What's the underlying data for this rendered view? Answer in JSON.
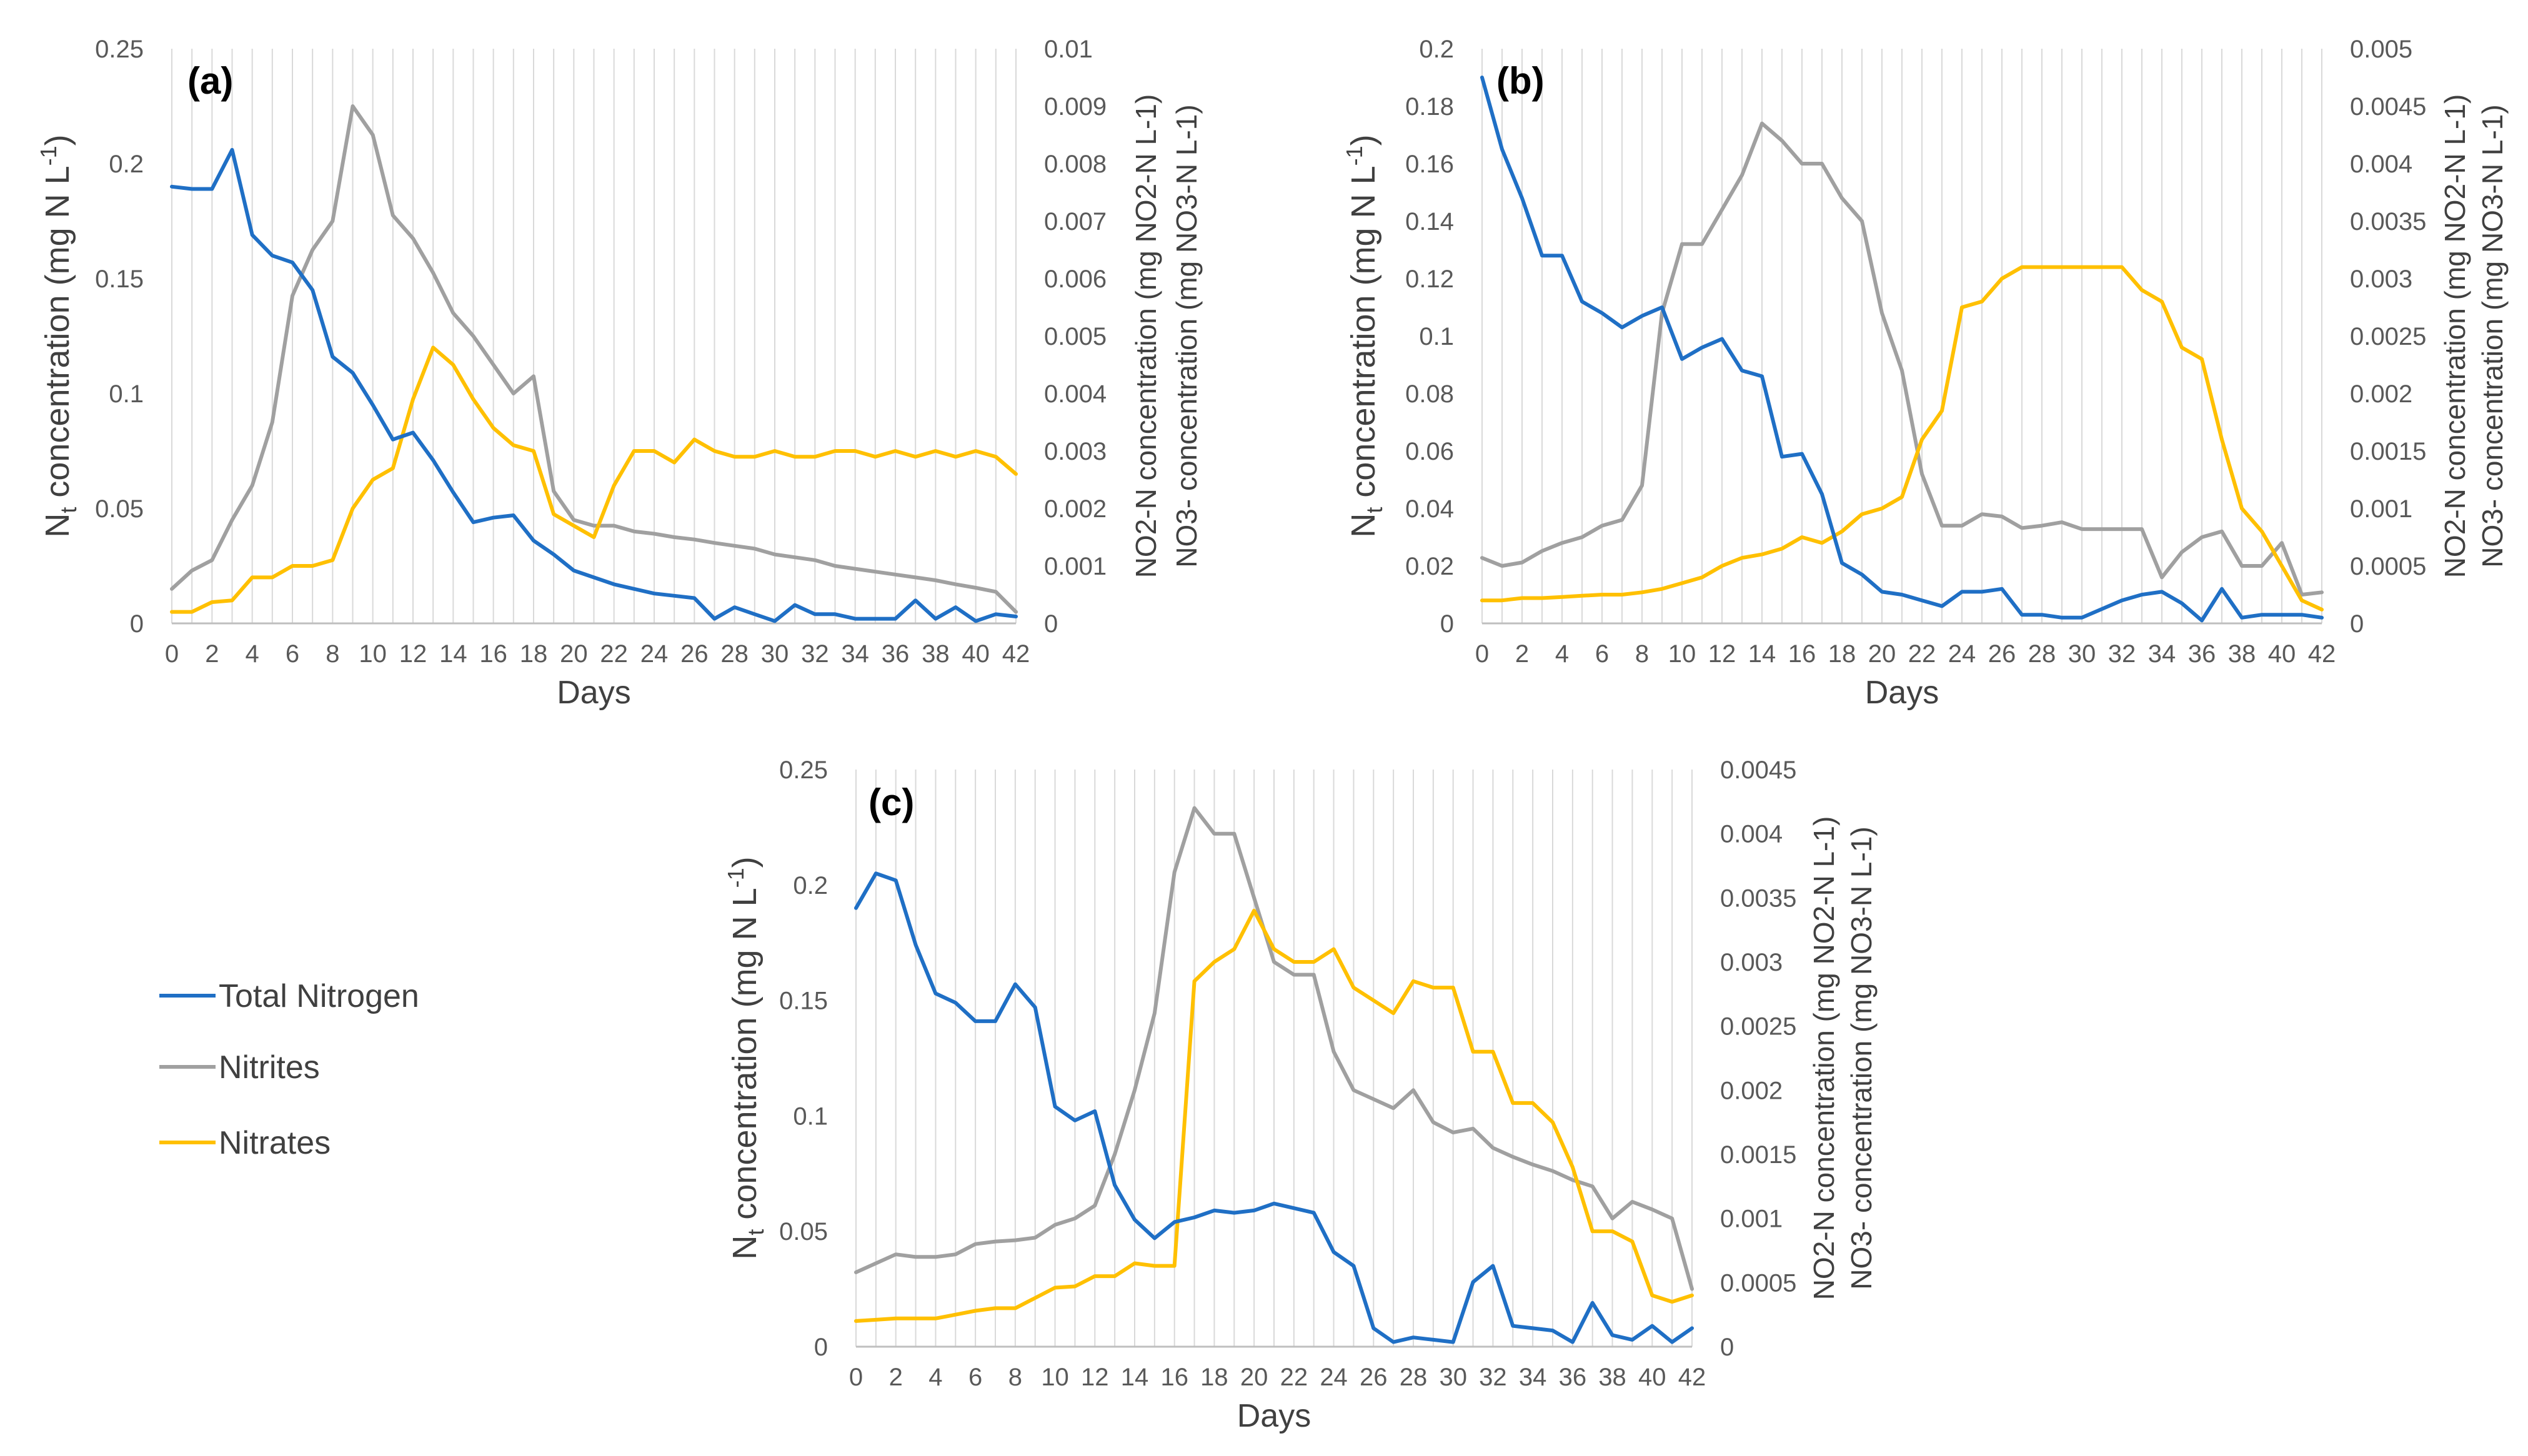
{
  "colors": {
    "total_nitrogen": "#1F6FC5",
    "nitrites": "#A0A0A0",
    "nitrates": "#FFC000",
    "grid": "#D9D9D9",
    "axis": "#BFBFBF"
  },
  "legend": {
    "items": [
      {
        "key": "total_nitrogen",
        "label": "Total Nitrogen"
      },
      {
        "key": "nitrites",
        "label": "Nitrites"
      },
      {
        "key": "nitrates",
        "label": "Nitrates"
      }
    ]
  },
  "chart_data": [
    {
      "panel": "(a)",
      "type": "line",
      "xlabel": "Days",
      "ylabel_left": "N",
      "ylabel_left_sub": "t",
      "ylabel_left_rest": " concentration (mg N L",
      "ylabel_left_sup": "-1",
      "ylabel_left_close": ")",
      "ylabel_right_1": "NO2-N concentration (mg NO2-N L-1)",
      "ylabel_right_2": "NO3- concentration (mg NO3-N L-1)",
      "x": [
        0,
        1,
        2,
        3,
        4,
        5,
        6,
        7,
        8,
        9,
        10,
        11,
        12,
        13,
        14,
        15,
        16,
        17,
        18,
        19,
        20,
        21,
        22,
        23,
        24,
        25,
        26,
        27,
        28,
        29,
        30,
        31,
        32,
        33,
        34,
        35,
        36,
        37,
        38,
        39,
        40,
        41,
        42
      ],
      "xticks": [
        "0",
        "2",
        "4",
        "6",
        "8",
        "10",
        "12",
        "14",
        "16",
        "18",
        "20",
        "22",
        "24",
        "26",
        "28",
        "30",
        "32",
        "34",
        "36",
        "38",
        "40",
        "42"
      ],
      "ylim_left": [
        0,
        0.25
      ],
      "yticks_left": [
        "0",
        "0.05",
        "0.1",
        "0.15",
        "0.2",
        "0.25"
      ],
      "ylim_right": [
        0,
        0.01
      ],
      "yticks_right": [
        "0",
        "0.001",
        "0.002",
        "0.003",
        "0.004",
        "0.005",
        "0.006",
        "0.007",
        "0.008",
        "0.009",
        "0.01"
      ],
      "series": [
        {
          "name": "Total Nitrogen",
          "key": "total_nitrogen",
          "axis": "left",
          "values": [
            0.19,
            0.189,
            0.189,
            0.206,
            0.169,
            0.16,
            0.157,
            0.145,
            0.116,
            0.109,
            0.095,
            0.08,
            0.083,
            0.071,
            0.057,
            0.044,
            0.046,
            0.047,
            0.036,
            0.03,
            0.023,
            0.02,
            0.017,
            0.015,
            0.013,
            0.012,
            0.011,
            0.002,
            0.007,
            0.004,
            0.001,
            0.008,
            0.004,
            0.004,
            0.002,
            0.002,
            0.002,
            0.01,
            0.002,
            0.007,
            0.001,
            0.004,
            0.003
          ]
        },
        {
          "name": "Nitrites",
          "key": "nitrites",
          "axis": "right",
          "values": [
            0.0006,
            0.00092,
            0.0011,
            0.0018,
            0.0024,
            0.0035,
            0.0057,
            0.0065,
            0.007,
            0.009,
            0.0085,
            0.0071,
            0.0067,
            0.0061,
            0.0054,
            0.005,
            0.0045,
            0.004,
            0.0043,
            0.0023,
            0.0018,
            0.0017,
            0.0017,
            0.0016,
            0.00156,
            0.0015,
            0.00146,
            0.0014,
            0.00135,
            0.0013,
            0.0012,
            0.00115,
            0.0011,
            0.001,
            0.00095,
            0.0009,
            0.00085,
            0.0008,
            0.00075,
            0.00068,
            0.00062,
            0.00055,
            0.0002
          ]
        },
        {
          "name": "Nitrates",
          "key": "nitrates",
          "axis": "right",
          "values": [
            0.0002,
            0.0002,
            0.00037,
            0.0004,
            0.0008,
            0.0008,
            0.001,
            0.001,
            0.0011,
            0.002,
            0.0025,
            0.0027,
            0.0039,
            0.0048,
            0.0045,
            0.0039,
            0.0034,
            0.0031,
            0.003,
            0.0019,
            0.0017,
            0.0015,
            0.0024,
            0.003,
            0.003,
            0.0028,
            0.0032,
            0.003,
            0.0029,
            0.0029,
            0.003,
            0.0029,
            0.0029,
            0.003,
            0.003,
            0.0029,
            0.003,
            0.0029,
            0.003,
            0.0029,
            0.003,
            0.0029,
            0.0026
          ]
        }
      ]
    },
    {
      "panel": "(b)",
      "type": "line",
      "xlabel": "Days",
      "ylabel_left": "N",
      "ylabel_left_sub": "t",
      "ylabel_left_rest": " concentration (mg N L",
      "ylabel_left_sup": "-1",
      "ylabel_left_close": ")",
      "ylabel_right_1": "NO2-N concentration (mg NO2-N L-1)",
      "ylabel_right_2": "NO3- concentration (mg NO3-N L-1)",
      "x": [
        0,
        1,
        2,
        3,
        4,
        5,
        6,
        7,
        8,
        9,
        10,
        11,
        12,
        13,
        14,
        15,
        16,
        17,
        18,
        19,
        20,
        21,
        22,
        23,
        24,
        25,
        26,
        27,
        28,
        29,
        30,
        31,
        32,
        33,
        34,
        35,
        36,
        37,
        38,
        39,
        40,
        41,
        42
      ],
      "xticks": [
        "0",
        "2",
        "4",
        "6",
        "8",
        "10",
        "12",
        "14",
        "16",
        "18",
        "20",
        "22",
        "24",
        "26",
        "28",
        "30",
        "32",
        "34",
        "36",
        "38",
        "40",
        "42"
      ],
      "ylim_left": [
        0,
        0.2
      ],
      "yticks_left": [
        "0",
        "0.02",
        "0.04",
        "0.06",
        "0.08",
        "0.1",
        "0.12",
        "0.14",
        "0.16",
        "0.18",
        "0.2"
      ],
      "ylim_right": [
        0,
        0.005
      ],
      "yticks_right": [
        "0",
        "0.0005",
        "0.001",
        "0.0015",
        "0.002",
        "0.0025",
        "0.003",
        "0.0035",
        "0.004",
        "0.0045",
        "0.005"
      ],
      "series": [
        {
          "name": "Total Nitrogen",
          "key": "total_nitrogen",
          "axis": "left",
          "values": [
            0.19,
            0.165,
            0.148,
            0.128,
            0.128,
            0.112,
            0.108,
            0.103,
            0.107,
            0.11,
            0.092,
            0.096,
            0.099,
            0.088,
            0.086,
            0.058,
            0.059,
            0.045,
            0.021,
            0.017,
            0.011,
            0.01,
            0.008,
            0.006,
            0.011,
            0.011,
            0.012,
            0.003,
            0.003,
            0.002,
            0.002,
            0.005,
            0.008,
            0.01,
            0.011,
            0.007,
            0.001,
            0.012,
            0.002,
            0.003,
            0.003,
            0.003,
            0.002
          ]
        },
        {
          "name": "Nitrites",
          "key": "nitrites",
          "axis": "right",
          "values": [
            0.00057,
            0.0005,
            0.00053,
            0.00063,
            0.0007,
            0.00075,
            0.00085,
            0.0009,
            0.0012,
            0.0027,
            0.0033,
            0.0033,
            0.0036,
            0.0039,
            0.00435,
            0.0042,
            0.004,
            0.004,
            0.0037,
            0.0035,
            0.0027,
            0.0022,
            0.0013,
            0.00085,
            0.00085,
            0.00095,
            0.00093,
            0.00083,
            0.00085,
            0.00088,
            0.00082,
            0.00082,
            0.00082,
            0.00082,
            0.0004,
            0.00062,
            0.00075,
            0.0008,
            0.0005,
            0.0005,
            0.0007,
            0.00025,
            0.00027
          ]
        },
        {
          "name": "Nitrates",
          "key": "nitrates",
          "axis": "right",
          "values": [
            0.0002,
            0.0002,
            0.00022,
            0.00022,
            0.00023,
            0.00024,
            0.00025,
            0.00025,
            0.00027,
            0.0003,
            0.00035,
            0.0004,
            0.0005,
            0.00057,
            0.0006,
            0.00065,
            0.00075,
            0.0007,
            0.0008,
            0.00095,
            0.001,
            0.0011,
            0.0016,
            0.00185,
            0.00275,
            0.0028,
            0.003,
            0.0031,
            0.0031,
            0.0031,
            0.0031,
            0.0031,
            0.0031,
            0.0029,
            0.0028,
            0.0024,
            0.0023,
            0.0016,
            0.001,
            0.0008,
            0.0005,
            0.0002,
            0.00012
          ]
        }
      ]
    },
    {
      "panel": "(c)",
      "type": "line",
      "xlabel": "Days",
      "ylabel_left": "N",
      "ylabel_left_sub": "t",
      "ylabel_left_rest": " concentration (mg N L",
      "ylabel_left_sup": "-1",
      "ylabel_left_close": ")",
      "ylabel_right_1": "NO2-N concentration (mg NO2-N L-1)",
      "ylabel_right_2": "NO3- concentration (mg NO3-N L-1)",
      "x": [
        0,
        1,
        2,
        3,
        4,
        5,
        6,
        7,
        8,
        9,
        10,
        11,
        12,
        13,
        14,
        15,
        16,
        17,
        18,
        19,
        20,
        21,
        22,
        23,
        24,
        25,
        26,
        27,
        28,
        29,
        30,
        31,
        32,
        33,
        34,
        35,
        36,
        37,
        38,
        39,
        40,
        41,
        42
      ],
      "xticks": [
        "0",
        "2",
        "4",
        "6",
        "8",
        "10",
        "12",
        "14",
        "16",
        "18",
        "20",
        "22",
        "24",
        "26",
        "28",
        "30",
        "32",
        "34",
        "36",
        "38",
        "40",
        "42"
      ],
      "ylim_left": [
        0,
        0.25
      ],
      "yticks_left": [
        "0",
        "0.05",
        "0.1",
        "0.15",
        "0.2",
        "0.25"
      ],
      "ylim_right": [
        0,
        0.0045
      ],
      "yticks_right": [
        "0",
        "0.0005",
        "0.001",
        "0.0015",
        "0.002",
        "0.0025",
        "0.003",
        "0.0035",
        "0.004",
        "0.0045"
      ],
      "series": [
        {
          "name": "Total Nitrogen",
          "key": "total_nitrogen",
          "axis": "left",
          "values": [
            0.19,
            0.205,
            0.202,
            0.174,
            0.153,
            0.149,
            0.141,
            0.141,
            0.157,
            0.147,
            0.104,
            0.098,
            0.102,
            0.07,
            0.055,
            0.047,
            0.054,
            0.056,
            0.059,
            0.058,
            0.059,
            0.062,
            0.06,
            0.058,
            0.041,
            0.035,
            0.008,
            0.002,
            0.004,
            0.003,
            0.002,
            0.028,
            0.035,
            0.009,
            0.008,
            0.007,
            0.002,
            0.019,
            0.005,
            0.003,
            0.009,
            0.002,
            0.008
          ]
        },
        {
          "name": "Nitrites",
          "key": "nitrites",
          "axis": "right",
          "values": [
            0.00058,
            0.00065,
            0.00072,
            0.0007,
            0.0007,
            0.00072,
            0.0008,
            0.00082,
            0.00083,
            0.00085,
            0.00095,
            0.001,
            0.0011,
            0.0015,
            0.002,
            0.0026,
            0.0037,
            0.0042,
            0.004,
            0.004,
            0.0035,
            0.003,
            0.0029,
            0.0029,
            0.0023,
            0.002,
            0.00193,
            0.00186,
            0.002,
            0.00175,
            0.00167,
            0.0017,
            0.00155,
            0.00148,
            0.00142,
            0.00137,
            0.0013,
            0.00125,
            0.001,
            0.00113,
            0.00107,
            0.001,
            0.00045
          ]
        },
        {
          "name": "Nitrates",
          "key": "nitrates",
          "axis": "right",
          "values": [
            0.0002,
            0.00021,
            0.00022,
            0.00022,
            0.00022,
            0.00025,
            0.00028,
            0.0003,
            0.0003,
            0.00038,
            0.00046,
            0.00047,
            0.00055,
            0.00055,
            0.00065,
            0.00063,
            0.00063,
            0.00285,
            0.003,
            0.0031,
            0.0034,
            0.0031,
            0.003,
            0.003,
            0.0031,
            0.0028,
            0.0027,
            0.0026,
            0.00285,
            0.0028,
            0.0028,
            0.0023,
            0.0023,
            0.0019,
            0.0019,
            0.00175,
            0.0014,
            0.0009,
            0.0009,
            0.00082,
            0.0004,
            0.00035,
            0.0004
          ]
        }
      ]
    }
  ]
}
